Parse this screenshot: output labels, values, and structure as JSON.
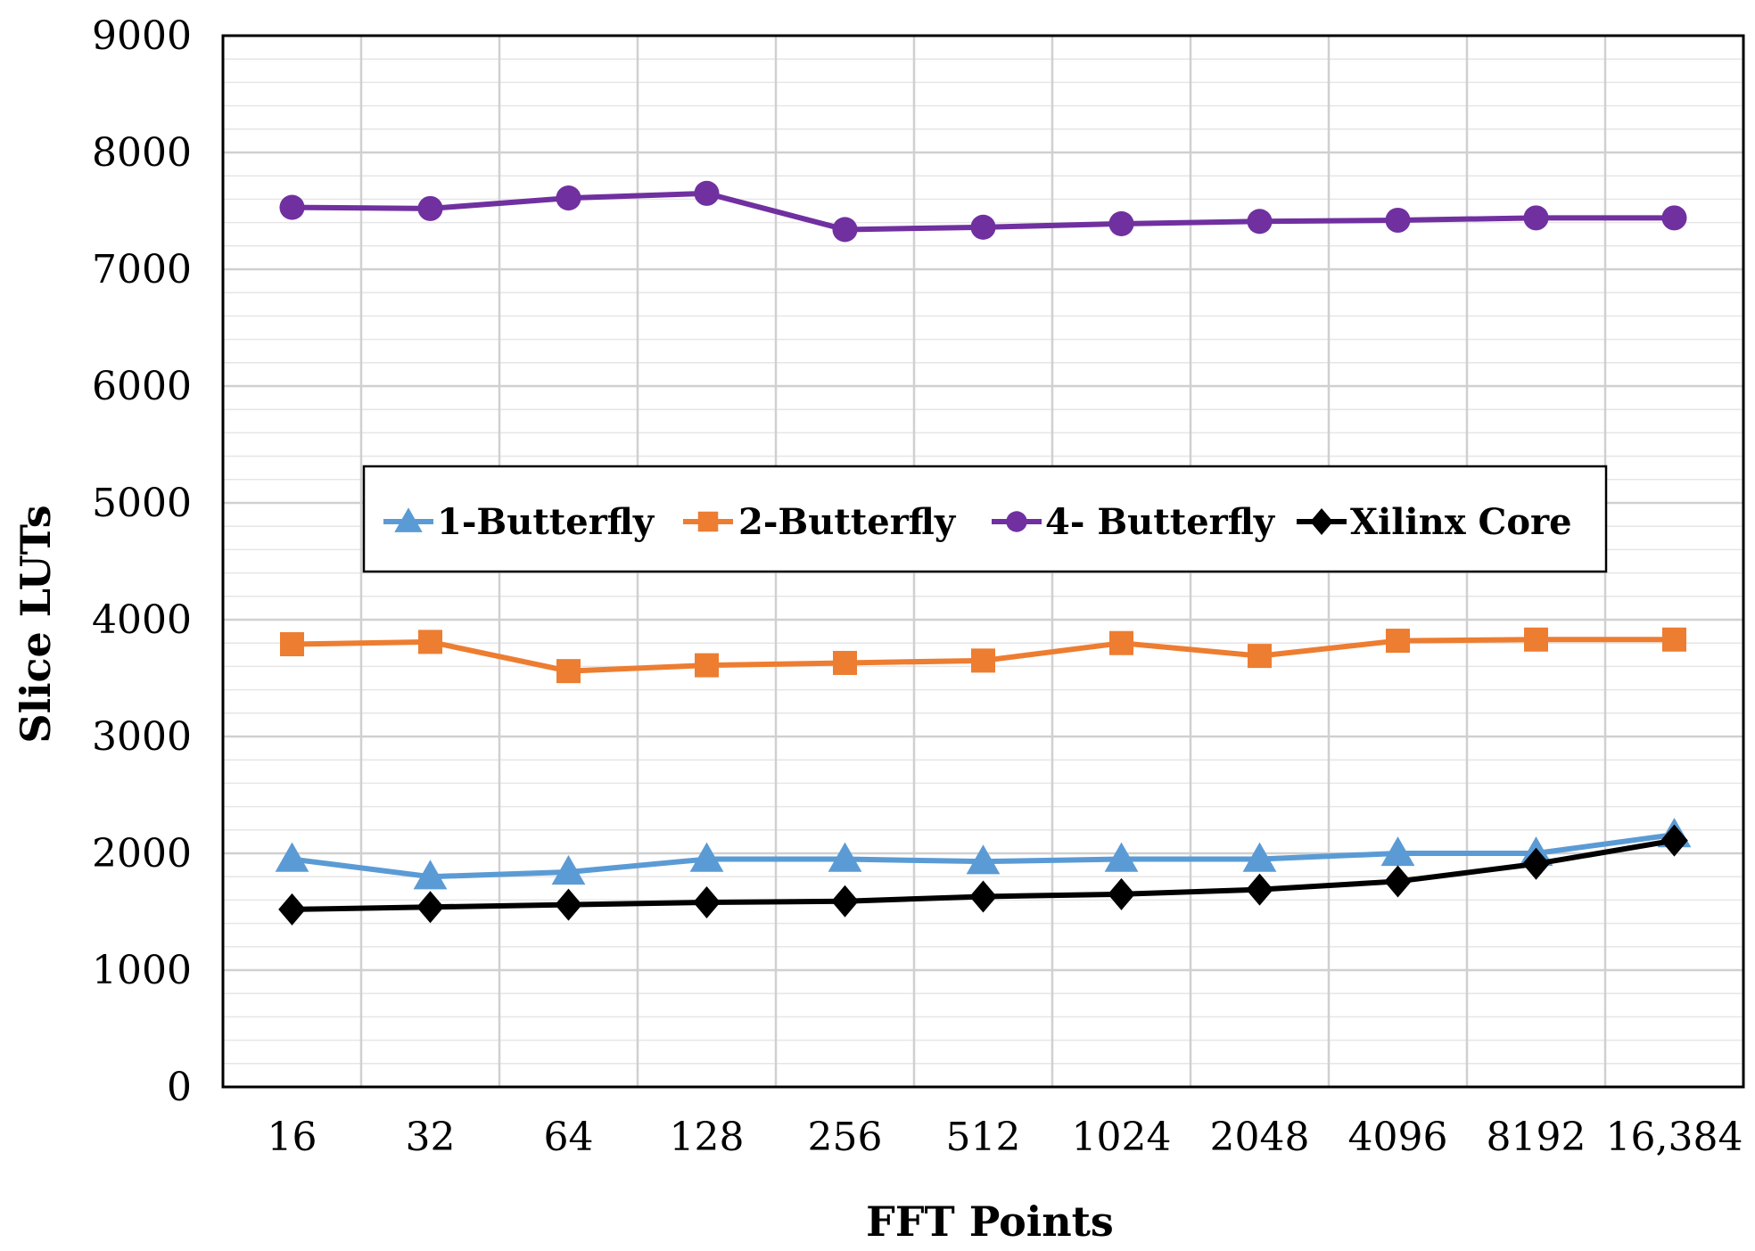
{
  "chart_data": {
    "type": "line",
    "title": "",
    "xlabel": "FFT Points",
    "ylabel": "Slice LUTs",
    "categories": [
      "16",
      "32",
      "64",
      "128",
      "256",
      "512",
      "1024",
      "2048",
      "4096",
      "8192",
      "16,384"
    ],
    "ylim": [
      0,
      9000
    ],
    "yticks": [
      "0",
      "1000",
      "2000",
      "3000",
      "4000",
      "5000",
      "6000",
      "7000",
      "8000",
      "9000"
    ],
    "grid": true,
    "legend_position": "center",
    "series": [
      {
        "name": "1-Butterfly",
        "color": "#5b9bd5",
        "marker": "triangle",
        "values": [
          1950,
          1800,
          1840,
          1950,
          1950,
          1930,
          1950,
          1950,
          2000,
          2000,
          2160
        ]
      },
      {
        "name": "2-Butterfly",
        "color": "#ed7d31",
        "marker": "square",
        "values": [
          3790,
          3810,
          3560,
          3610,
          3630,
          3650,
          3800,
          3690,
          3820,
          3830,
          3830
        ]
      },
      {
        "name": "4- Butterfly",
        "color": "#7030a0",
        "marker": "circle",
        "values": [
          7530,
          7520,
          7610,
          7650,
          7340,
          7360,
          7390,
          7410,
          7420,
          7440,
          7440
        ]
      },
      {
        "name": "Xilinx Core",
        "color": "#000000",
        "marker": "diamond",
        "values": [
          1520,
          1540,
          1560,
          1580,
          1590,
          1630,
          1650,
          1690,
          1760,
          1910,
          2110
        ]
      }
    ]
  }
}
